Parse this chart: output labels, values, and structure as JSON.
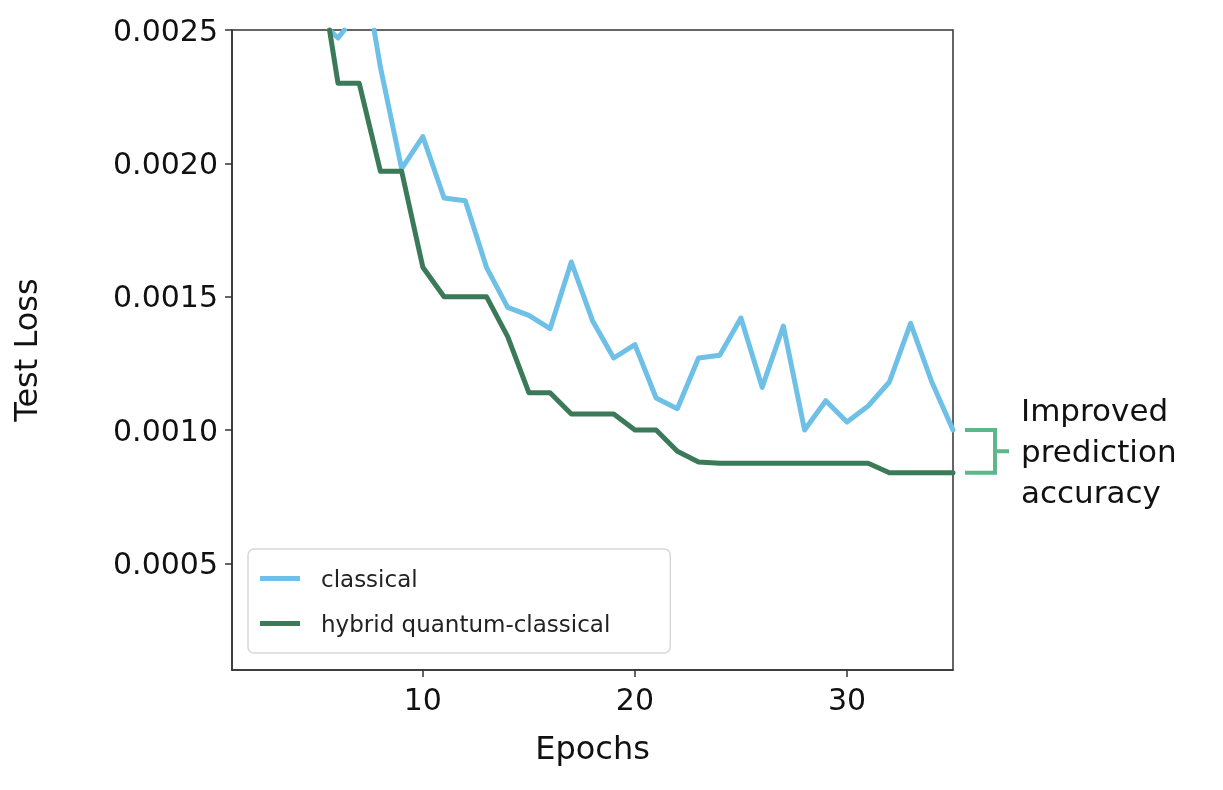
{
  "chart_data": {
    "type": "line",
    "xlabel": "Epochs",
    "ylabel": "Test Loss",
    "xlim": [
      1,
      35
    ],
    "ylim": [
      0.0001,
      0.0025
    ],
    "xticks": [
      10,
      20,
      30
    ],
    "yticks": [
      0.0005,
      {
        "value": 0.001,
        "label": "0.0010"
      },
      0.0015,
      {
        "value": 0.002,
        "label": "0.0020"
      },
      0.0025
    ],
    "grid": false,
    "legend": "bottom left",
    "marker": "none",
    "line_style": "solid",
    "series": [
      {
        "name": "classical",
        "color": "#6ec0e6",
        "x": [
          5.6,
          6,
          6.3,
          7,
          7.7,
          8,
          9,
          10,
          11,
          12,
          13,
          14,
          15,
          16,
          17,
          18,
          19,
          20,
          21,
          22,
          23,
          24,
          25,
          26,
          27,
          28,
          29,
          30,
          31,
          32,
          33,
          34,
          35
        ],
        "values": [
          0.0025,
          0.00247,
          0.0025,
          null,
          0.0025,
          0.00236,
          0.00198,
          0.0021,
          0.00187,
          0.00186,
          0.00161,
          0.00146,
          0.00143,
          0.00138,
          0.00163,
          0.00141,
          0.00127,
          0.00132,
          0.00112,
          0.00108,
          0.00127,
          0.00128,
          0.00142,
          0.00116,
          0.00139,
          0.001,
          0.00111,
          0.00103,
          0.00109,
          0.00118,
          0.0014,
          0.00118,
          0.001
        ]
      },
      {
        "name": "hybrid quantum-classical",
        "color": "#3a7a58",
        "x": [
          5.6,
          6,
          7,
          8,
          9,
          10,
          11,
          12,
          13,
          14,
          15,
          16,
          17,
          18,
          19,
          20,
          21,
          22,
          23,
          24,
          25,
          26,
          27,
          28,
          29,
          30,
          31,
          32,
          33,
          34,
          35
        ],
        "values": [
          0.0025,
          0.0023,
          0.0023,
          0.00197,
          0.00197,
          0.00161,
          0.0015,
          0.0015,
          0.0015,
          0.00135,
          0.00114,
          0.00114,
          0.00106,
          0.00106,
          0.00106,
          0.001,
          0.001,
          0.00092,
          0.00088,
          0.000875,
          0.000875,
          0.000875,
          0.000875,
          0.000875,
          0.000875,
          0.000875,
          0.000875,
          0.00084,
          0.00084,
          0.00084,
          0.00084
        ]
      }
    ],
    "annotations": [
      "Improved\nprediction\naccuracy"
    ]
  }
}
